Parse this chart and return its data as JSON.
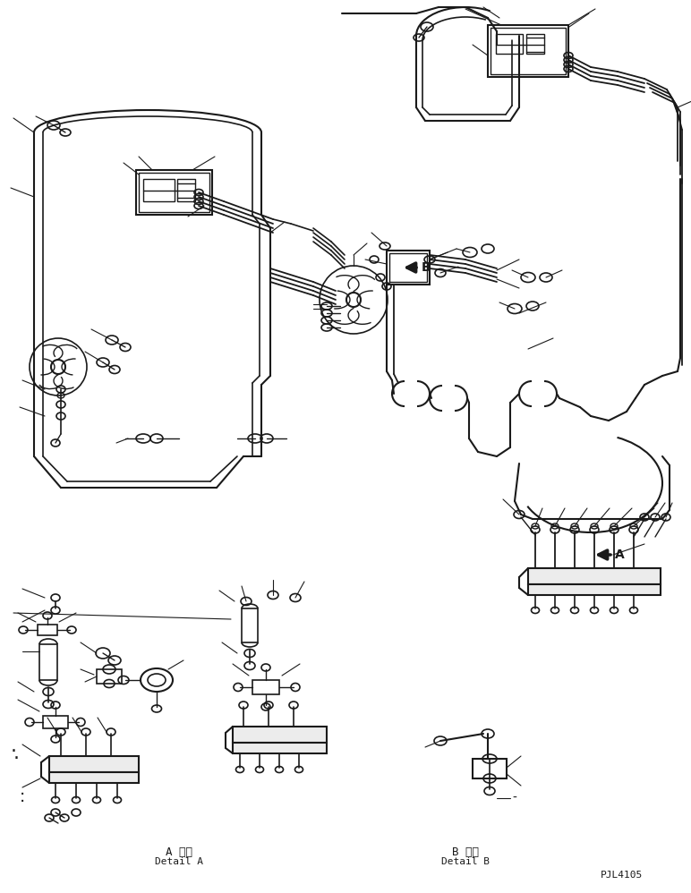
{
  "background_color": "#ffffff",
  "line_color": "#1a1a1a",
  "label_A_jp": "A 詳細",
  "label_A_en": "Detail A",
  "label_B_jp": "B 詳細",
  "label_B_en": "Detail B",
  "label_code": "PJL4105",
  "fig_width": 7.72,
  "fig_height": 9.98,
  "dpi": 100
}
